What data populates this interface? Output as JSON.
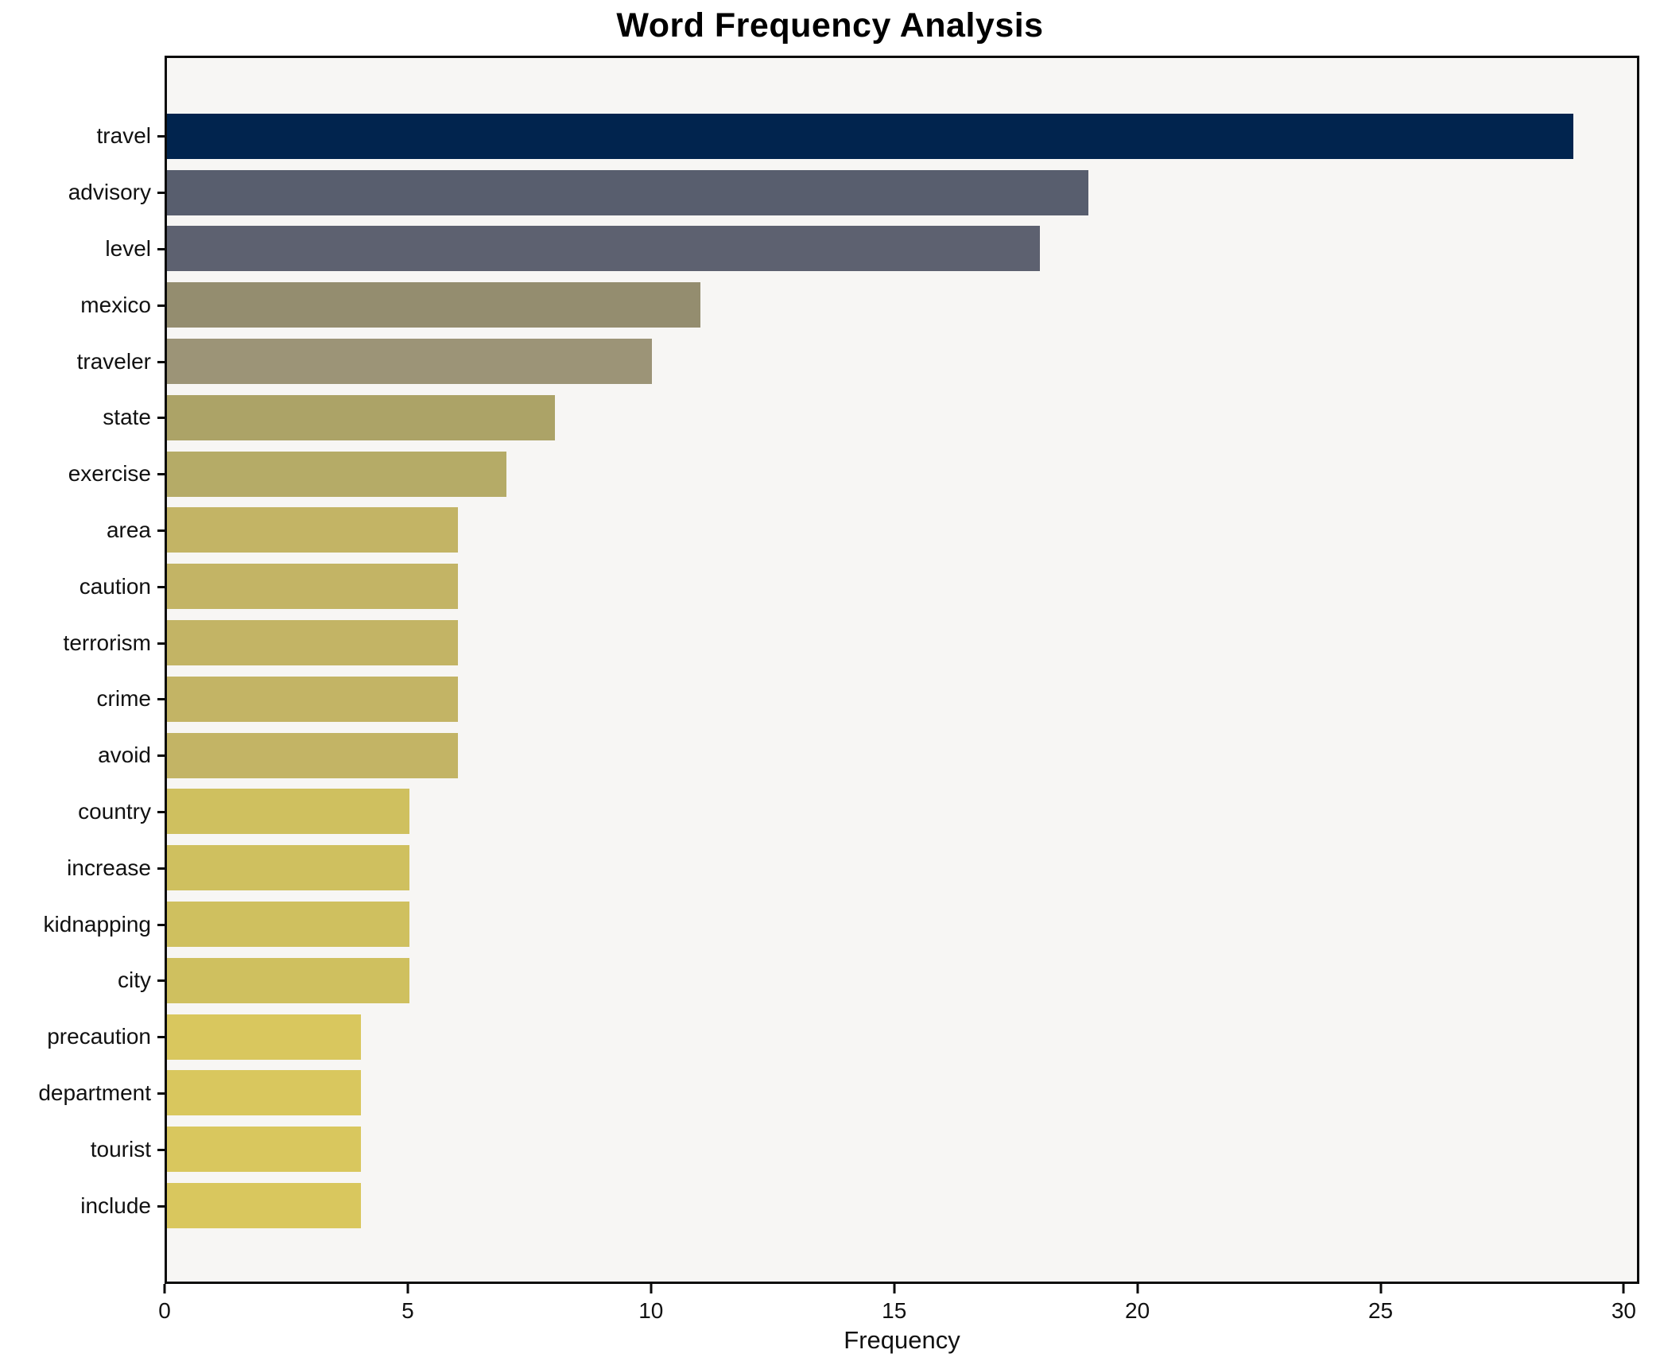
{
  "title": "Word Frequency Analysis",
  "chart_data": {
    "type": "bar",
    "orientation": "horizontal",
    "title": "Word Frequency Analysis",
    "xlabel": "Frequency",
    "ylabel": "",
    "xlim": [
      0,
      30.32
    ],
    "x_ticks": [
      0,
      5,
      10,
      15,
      20,
      25,
      30
    ],
    "grid": false,
    "legend": "none",
    "plot_bg": "#f7f6f4",
    "figure_bg": "#ffffff",
    "spine_color": "#0a0a0a",
    "categories": [
      "travel",
      "advisory",
      "level",
      "mexico",
      "traveler",
      "state",
      "exercise",
      "area",
      "caution",
      "terrorism",
      "crime",
      "avoid",
      "country",
      "increase",
      "kidnapping",
      "city",
      "precaution",
      "department",
      "tourist",
      "include"
    ],
    "values": [
      29,
      19,
      18,
      11,
      10,
      8,
      7,
      6,
      6,
      6,
      6,
      6,
      5,
      5,
      5,
      5,
      4,
      4,
      4,
      4
    ],
    "bar_colors": [
      "#01244e",
      "#585e6e",
      "#5d6170",
      "#948d6f",
      "#9c9477",
      "#aca367",
      "#b5ab67",
      "#c3b465",
      "#c3b465",
      "#c3b465",
      "#c3b465",
      "#c3b465",
      "#cfc05f",
      "#cfc05f",
      "#cfc05f",
      "#cfc05f",
      "#d9c75e",
      "#d9c75e",
      "#d9c75e",
      "#d9c75e"
    ]
  }
}
